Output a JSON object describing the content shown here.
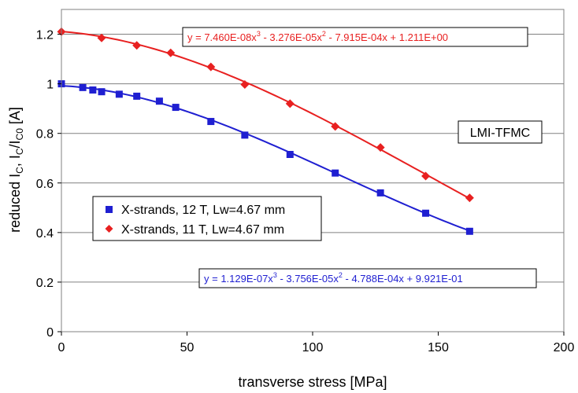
{
  "chart_data": {
    "type": "scatter",
    "title": "",
    "xlabel": "transverse stress [MPa]",
    "ylabel_parts": {
      "prefix": "reduced I",
      "sub1": "C",
      "mid": ", I",
      "sub2": "C",
      "slash": "/I",
      "sub3": "C0",
      "suffix": " [A]"
    },
    "xlim": [
      0,
      200
    ],
    "ylim": [
      0,
      1.3
    ],
    "x_ticks": [
      "0",
      "50",
      "100",
      "150",
      "200"
    ],
    "y_ticks": [
      "0",
      "0.2",
      "0.4",
      "0.6",
      "0.8",
      "1",
      "1.2"
    ],
    "x_tick_values": [
      0,
      50,
      100,
      150,
      200
    ],
    "y_tick_values": [
      0,
      0.2,
      0.4,
      0.6,
      0.8,
      1.0,
      1.2
    ],
    "grid": "horizontal",
    "legend_position": "lower-left",
    "series": [
      {
        "name": "X-strands, 12 T, Lw=4.67 mm",
        "color": "#1f1fd1",
        "marker": "square",
        "x": [
          0,
          8.5,
          12.5,
          16,
          23,
          30,
          39,
          45.5,
          59.5,
          73,
          91,
          109,
          127,
          145,
          162.5
        ],
        "y": [
          1.0,
          0.985,
          0.975,
          0.968,
          0.958,
          0.95,
          0.93,
          0.905,
          0.848,
          0.793,
          0.715,
          0.64,
          0.56,
          0.478,
          0.405
        ],
        "fit": {
          "a3": 1.129e-07,
          "a2": -3.756e-05,
          "a1": -0.0004788,
          "a0": 0.9921
        },
        "equation": {
          "p1": "y = 1.129E-07x",
          "e1": "3",
          "p2": " - 3.756E-05x",
          "e2": "2",
          "p3": " - 4.788E-04x + 9.921E-01"
        }
      },
      {
        "name": "X-strands, 11 T, Lw=4.67 mm",
        "color": "#e82020",
        "marker": "diamond",
        "x": [
          0,
          16,
          30,
          43.5,
          59.5,
          73,
          91,
          109,
          127,
          145,
          162.5
        ],
        "y": [
          1.21,
          1.185,
          1.155,
          1.125,
          1.068,
          0.997,
          0.92,
          0.828,
          0.743,
          0.628,
          0.54
        ],
        "fit": {
          "a3": 7.46e-08,
          "a2": -3.276e-05,
          "a1": -0.0007915,
          "a0": 1.211
        },
        "equation": {
          "p1": "y = 7.460E-08x",
          "e1": "3",
          "p2": " - 3.276E-05x",
          "e2": "2",
          "p3": " - 7.915E-04x + 1.211E+00"
        }
      }
    ],
    "annotations": [
      {
        "text": "LMI-TFMC",
        "color": "#000000"
      }
    ]
  }
}
